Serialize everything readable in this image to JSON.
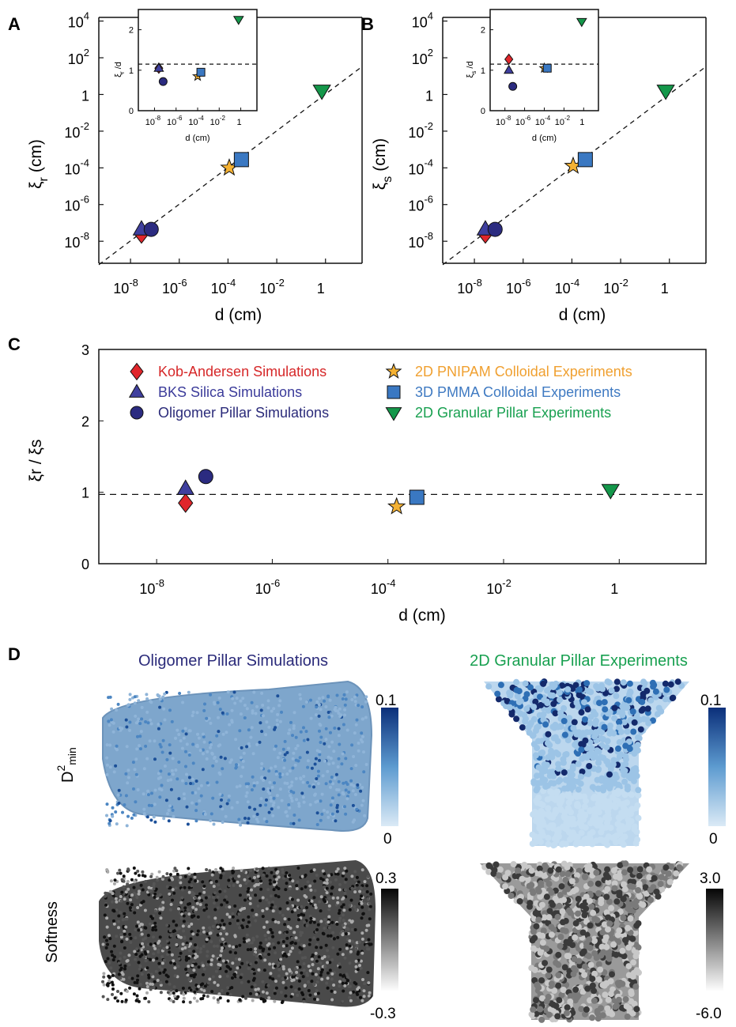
{
  "panel_labels": {
    "a": "A",
    "b": "B",
    "c": "C",
    "d": "D"
  },
  "colors": {
    "kob": "#e0262b",
    "bks": "#3f3f9e",
    "olig": "#2b2b80",
    "pnipam": "#f5b233",
    "pmma": "#3a78c2",
    "gran": "#14974a",
    "legend_kob": "#d62728",
    "legend_bks": "#3b3b9a",
    "legend_olig": "#2b2b7a",
    "legend_pnipam": "#f0a030",
    "legend_pmma": "#3f7ac2",
    "legend_gran": "#18a050"
  },
  "chart_data": [
    {
      "id": "A",
      "type": "scatter",
      "log_x": true,
      "log_y": true,
      "xlabel": "d (cm)",
      "ylabel": "ξr (cm)",
      "ylabel_main": "ξ",
      "ylabel_sub": "r",
      "ylabel_unit": "(cm)",
      "xlim_log10": [
        -9.3,
        1.5
      ],
      "ylim_log10": [
        -9.2,
        4.2
      ],
      "x_ticks": [
        {
          "exp": -8,
          "label": "10",
          "sup": "-8"
        },
        {
          "exp": -6,
          "label": "10",
          "sup": "-6"
        },
        {
          "exp": -4,
          "label": "10",
          "sup": "-4"
        },
        {
          "exp": -2,
          "label": "10",
          "sup": "-2"
        },
        {
          "exp": 0,
          "label": "1",
          "sup": ""
        }
      ],
      "y_ticks": [
        {
          "exp": -8,
          "label": "10",
          "sup": "-8"
        },
        {
          "exp": -6,
          "label": "10",
          "sup": "-6"
        },
        {
          "exp": -4,
          "label": "10",
          "sup": "-4"
        },
        {
          "exp": -2,
          "label": "10",
          "sup": "-2"
        },
        {
          "exp": 0,
          "label": "1",
          "sup": ""
        },
        {
          "exp": 2,
          "label": "10",
          "sup": "2"
        },
        {
          "exp": 4,
          "label": "10",
          "sup": "4"
        }
      ],
      "points": [
        {
          "series": "Kob-Andersen Simulations",
          "marker": "diamond",
          "color": "kob",
          "logx": -7.55,
          "logy": -7.6
        },
        {
          "series": "BKS Silica Simulations",
          "marker": "triangle",
          "color": "bks",
          "logx": -7.55,
          "logy": -7.35
        },
        {
          "series": "Oligomer Pillar Simulations",
          "marker": "circle",
          "color": "olig",
          "logx": -7.15,
          "logy": -7.35
        },
        {
          "series": "2D PNIPAM Colloidal Experiments",
          "marker": "star",
          "color": "pnipam",
          "logx": -3.95,
          "logy": -4.0
        },
        {
          "series": "3D PMMA Colloidal Experiments",
          "marker": "square",
          "color": "pmma",
          "logx": -3.45,
          "logy": -3.55
        },
        {
          "series": "2D Granular Pillar Experiments",
          "marker": "triangle-down",
          "color": "gran",
          "logx": -0.15,
          "logy": 0.2
        }
      ],
      "fit_line": {
        "logx": [
          -9.3,
          1.5
        ],
        "logy": [
          -9.28,
          1.52
        ]
      },
      "inset": {
        "ylabel": "ξr /d",
        "ylabel_main": "ξ",
        "ylabel_sub": "r",
        "ylabel_tail": " /d",
        "xlabel": "d (cm)",
        "xlim_log10": [
          -9.5,
          1.5
        ],
        "ylim": [
          0,
          2.5
        ],
        "y_ticks": [
          {
            "v": 0,
            "label": "0"
          },
          {
            "v": 1,
            "label": "1"
          },
          {
            "v": 2,
            "label": "2"
          }
        ],
        "x_ticks": [
          {
            "exp": -8,
            "label": "10",
            "sup": "-8"
          },
          {
            "exp": -6,
            "label": "10",
            "sup": "-6"
          },
          {
            "exp": -4,
            "label": "10",
            "sup": "-4"
          },
          {
            "exp": -2,
            "label": "10",
            "sup": "-2"
          },
          {
            "exp": 0,
            "label": "1",
            "sup": ""
          }
        ],
        "dashed_y": 1.15,
        "points": [
          {
            "marker": "diamond",
            "color": "kob",
            "logx": -7.6,
            "y": 1.05
          },
          {
            "marker": "triangle",
            "color": "bks",
            "logx": -7.6,
            "y": 1.05
          },
          {
            "marker": "circle",
            "color": "olig",
            "logx": -7.2,
            "y": 0.72
          },
          {
            "marker": "star",
            "color": "pnipam",
            "logx": -4.0,
            "y": 0.85
          },
          {
            "marker": "square",
            "color": "pmma",
            "logx": -3.7,
            "y": 0.95
          },
          {
            "marker": "triangle-down",
            "color": "gran",
            "logx": -0.2,
            "y": 2.25
          }
        ]
      }
    },
    {
      "id": "B",
      "type": "scatter",
      "log_x": true,
      "log_y": true,
      "xlabel": "d (cm)",
      "ylabel": "ξs (cm)",
      "ylabel_main": "ξ",
      "ylabel_sub": "s",
      "ylabel_unit": "(cm)",
      "xlim_log10": [
        -9.3,
        1.5
      ],
      "ylim_log10": [
        -9.2,
        4.2
      ],
      "x_ticks": [
        {
          "exp": -8,
          "label": "10",
          "sup": "-8"
        },
        {
          "exp": -6,
          "label": "10",
          "sup": "-6"
        },
        {
          "exp": -4,
          "label": "10",
          "sup": "-4"
        },
        {
          "exp": -2,
          "label": "10",
          "sup": "-2"
        },
        {
          "exp": 0,
          "label": "1",
          "sup": ""
        }
      ],
      "y_ticks": [
        {
          "exp": -8,
          "label": "10",
          "sup": "-8"
        },
        {
          "exp": -6,
          "label": "10",
          "sup": "-6"
        },
        {
          "exp": -4,
          "label": "10",
          "sup": "-4"
        },
        {
          "exp": -2,
          "label": "10",
          "sup": "-2"
        },
        {
          "exp": 0,
          "label": "1",
          "sup": ""
        },
        {
          "exp": 2,
          "label": "10",
          "sup": "2"
        },
        {
          "exp": 4,
          "label": "10",
          "sup": "4"
        }
      ],
      "points": [
        {
          "series": "Kob-Andersen Simulations",
          "marker": "diamond",
          "color": "kob",
          "logx": -7.55,
          "logy": -7.6
        },
        {
          "series": "BKS Silica Simulations",
          "marker": "triangle",
          "color": "bks",
          "logx": -7.55,
          "logy": -7.35
        },
        {
          "series": "Oligomer Pillar Simulations",
          "marker": "circle",
          "color": "olig",
          "logx": -7.15,
          "logy": -7.35
        },
        {
          "series": "2D PNIPAM Colloidal Experiments",
          "marker": "star",
          "color": "pnipam",
          "logx": -3.95,
          "logy": -3.9
        },
        {
          "series": "3D PMMA Colloidal Experiments",
          "marker": "square",
          "color": "pmma",
          "logx": -3.45,
          "logy": -3.55
        },
        {
          "series": "2D Granular Pillar Experiments",
          "marker": "triangle-down",
          "color": "gran",
          "logx": -0.15,
          "logy": 0.2
        }
      ],
      "fit_line": {
        "logx": [
          -9.3,
          1.5
        ],
        "logy": [
          -9.28,
          1.52
        ]
      },
      "inset": {
        "ylabel": "ξs /d",
        "ylabel_main": "ξ",
        "ylabel_sub": "s",
        "ylabel_tail": " /d",
        "xlabel": "d (cm)",
        "xlim_log10": [
          -9.5,
          1.5
        ],
        "ylim": [
          0,
          2.5
        ],
        "y_ticks": [
          {
            "v": 0,
            "label": "0"
          },
          {
            "v": 1,
            "label": "1"
          },
          {
            "v": 2,
            "label": "2"
          }
        ],
        "x_ticks": [
          {
            "exp": -8,
            "label": "10",
            "sup": "-8"
          },
          {
            "exp": -6,
            "label": "10",
            "sup": "-6"
          },
          {
            "exp": -4,
            "label": "10",
            "sup": "-4"
          },
          {
            "exp": -2,
            "label": "10",
            "sup": "-2"
          },
          {
            "exp": 0,
            "label": "1",
            "sup": ""
          }
        ],
        "dashed_y": 1.15,
        "points": [
          {
            "marker": "diamond",
            "color": "kob",
            "logx": -7.6,
            "y": 1.27
          },
          {
            "marker": "triangle",
            "color": "bks",
            "logx": -7.6,
            "y": 1.0
          },
          {
            "marker": "circle",
            "color": "olig",
            "logx": -7.2,
            "y": 0.6
          },
          {
            "marker": "star",
            "color": "pnipam",
            "logx": -4.0,
            "y": 1.05
          },
          {
            "marker": "square",
            "color": "pmma",
            "logx": -3.7,
            "y": 1.05
          },
          {
            "marker": "triangle-down",
            "color": "gran",
            "logx": -0.2,
            "y": 2.2
          }
        ]
      }
    },
    {
      "id": "C",
      "type": "scatter",
      "log_x": true,
      "xlabel": "d (cm)",
      "ylabel": "ξr / ξs",
      "xlim_log10": [
        -9.0,
        1.5
      ],
      "ylim": [
        0,
        3
      ],
      "x_ticks": [
        {
          "exp": -8,
          "label": "10",
          "sup": "-8"
        },
        {
          "exp": -6,
          "label": "10",
          "sup": "-6"
        },
        {
          "exp": -4,
          "label": "10",
          "sup": "-4"
        },
        {
          "exp": -2,
          "label": "10",
          "sup": "-2"
        },
        {
          "exp": 0,
          "label": "1",
          "sup": ""
        }
      ],
      "y_ticks": [
        {
          "v": 0,
          "label": "0"
        },
        {
          "v": 1,
          "label": "1"
        },
        {
          "v": 2,
          "label": "2"
        },
        {
          "v": 3,
          "label": "3"
        }
      ],
      "dashed_y": 0.97,
      "points": [
        {
          "series": "Kob-Andersen Simulations",
          "marker": "diamond",
          "color": "kob",
          "logx": -7.5,
          "y": 0.85
        },
        {
          "series": "BKS Silica Simulations",
          "marker": "triangle",
          "color": "bks",
          "logx": -7.5,
          "y": 1.05
        },
        {
          "series": "Oligomer Pillar Simulations",
          "marker": "circle",
          "color": "olig",
          "logx": -7.15,
          "y": 1.22
        },
        {
          "series": "2D PNIPAM Colloidal Experiments",
          "marker": "star",
          "color": "pnipam",
          "logx": -3.85,
          "y": 0.8
        },
        {
          "series": "3D PMMA Colloidal Experiments",
          "marker": "square",
          "color": "pmma",
          "logx": -3.5,
          "y": 0.93
        },
        {
          "series": "2D Granular Pillar Experiments",
          "marker": "triangle-down",
          "color": "gran",
          "logx": -0.15,
          "y": 1.03
        }
      ],
      "legend": [
        {
          "label": "Kob-Andersen Simulations",
          "marker": "diamond",
          "color": "kob",
          "text_color": "legend_kob"
        },
        {
          "label": "BKS Silica Simulations",
          "marker": "triangle",
          "color": "bks",
          "text_color": "legend_bks"
        },
        {
          "label": "Oligomer Pillar Simulations",
          "marker": "circle",
          "color": "olig",
          "text_color": "legend_olig"
        },
        {
          "label": "2D PNIPAM Colloidal Experiments",
          "marker": "star",
          "color": "pnipam",
          "text_color": "legend_pnipam"
        },
        {
          "label": "3D PMMA Colloidal Experiments",
          "marker": "square",
          "color": "pmma",
          "text_color": "legend_pmma"
        },
        {
          "label": "2D Granular Pillar Experiments",
          "marker": "triangle-down",
          "color": "gran",
          "text_color": "legend_gran"
        }
      ]
    }
  ],
  "panel_d": {
    "left_title": "Oligomer Pillar Simulations",
    "right_title": "2D Granular Pillar Experiments",
    "row1_label_main": "D",
    "row1_label_sup": "2",
    "row1_label_sub": "min",
    "row2_label": "Softness",
    "colorbars": {
      "d2min_left": {
        "max": "0.1",
        "min": "0"
      },
      "d2min_right": {
        "max": "0.1",
        "min": "0"
      },
      "soft_left": {
        "max": "0.3",
        "min": "-0.3"
      },
      "soft_right": {
        "max": "3.0",
        "min": "-6.0"
      }
    }
  }
}
